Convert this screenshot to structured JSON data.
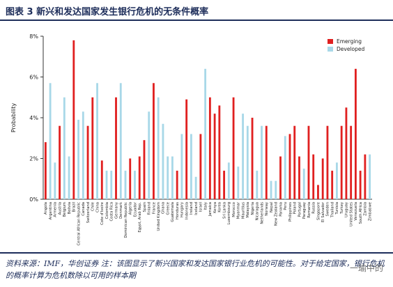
{
  "title": "图表 3 新兴和发达国家发生银行危机的无条件概率",
  "source_note": "资料来源：IMF，华创证券 注：该图显示了新兴国家和发达国家银行业危机的可能性。对于给定国家，银行危机的概率计算为危机数除以可用的样本期",
  "watermark": "一瑜中的",
  "chart_data": {
    "type": "bar",
    "ylabel": "Probability",
    "ylim": [
      0,
      8
    ],
    "yticks": [
      "0%",
      "2%",
      "4%",
      "6%",
      "8%"
    ],
    "grid": false,
    "legend_position": "top-right",
    "series": [
      {
        "name": "Emerging",
        "color": "#e02020"
      },
      {
        "name": "Developed",
        "color": "#a8d8e8"
      }
    ],
    "categories": [
      "Angola",
      "Argentina",
      "Armenia",
      "Austria",
      "Belgium",
      "Bolivia",
      "Brazil",
      "Central African Republic",
      "Canada",
      "Switzerland",
      "Chile",
      "China",
      "Cote d'Ivoire",
      "Colombia",
      "Costa Rica",
      "Germany",
      "Denmark",
      "Dominican Republic",
      "Algeria",
      "Ecuador",
      "Egypt, Arab Rep.",
      "Spain",
      "Finland",
      "France",
      "United Kingdom",
      "Ghana",
      "Greece",
      "Guatemala",
      "Honduras",
      "Hungary",
      "Indonesia",
      "Ireland",
      "Iceland",
      "Israel",
      "Italy",
      "Jamaica",
      "Kenya",
      "Korea",
      "Sri Lanka",
      "Luxembourg",
      "Morocco",
      "Myanmar",
      "Mauritius",
      "Malaysia",
      "Nigeria",
      "Nicaragua",
      "Netherlands",
      "Norway",
      "Nepal",
      "New Zealand",
      "Panama",
      "Peru",
      "Philippines",
      "Poland",
      "Portugal",
      "Paraguay",
      "Romania",
      "Russia",
      "Singapore",
      "El Salvador",
      "Sweden",
      "Thailand",
      "Tunisia",
      "Turkey",
      "Uruguay",
      "United States",
      "Venezuela",
      "South Africa",
      "Zambia",
      "Zimbabwe"
    ],
    "values": [
      {
        "v": 2.8,
        "s": "Emerging"
      },
      {
        "v": 5.7,
        "s": "Developed"
      },
      {
        "v": 1.8,
        "s": "Developed"
      },
      {
        "v": 3.6,
        "s": "Emerging"
      },
      {
        "v": 5.0,
        "s": "Developed"
      },
      {
        "v": 2.1,
        "s": "Developed"
      },
      {
        "v": 7.8,
        "s": "Emerging"
      },
      {
        "v": 3.9,
        "s": "Developed"
      },
      {
        "v": 4.3,
        "s": "Developed"
      },
      {
        "v": 3.6,
        "s": "Emerging"
      },
      {
        "v": 5.0,
        "s": "Emerging"
      },
      {
        "v": 5.7,
        "s": "Developed"
      },
      {
        "v": 1.9,
        "s": "Emerging"
      },
      {
        "v": 1.4,
        "s": "Developed"
      },
      {
        "v": 1.4,
        "s": "Developed"
      },
      {
        "v": 5.0,
        "s": "Emerging"
      },
      {
        "v": 5.7,
        "s": "Developed"
      },
      {
        "v": 1.4,
        "s": "Developed"
      },
      {
        "v": 2.0,
        "s": "Emerging"
      },
      {
        "v": 1.4,
        "s": "Developed"
      },
      {
        "v": 2.1,
        "s": "Emerging"
      },
      {
        "v": 2.9,
        "s": "Emerging"
      },
      {
        "v": 4.3,
        "s": "Developed"
      },
      {
        "v": 5.7,
        "s": "Emerging"
      },
      {
        "v": 5.0,
        "s": "Developed"
      },
      {
        "v": 3.7,
        "s": "Developed"
      },
      {
        "v": 2.1,
        "s": "Developed"
      },
      {
        "v": 2.1,
        "s": "Developed"
      },
      {
        "v": 1.4,
        "s": "Emerging"
      },
      {
        "v": 3.2,
        "s": "Developed"
      },
      {
        "v": 4.9,
        "s": "Emerging"
      },
      {
        "v": 3.2,
        "s": "Developed"
      },
      {
        "v": 1.1,
        "s": "Developed"
      },
      {
        "v": 3.2,
        "s": "Emerging"
      },
      {
        "v": 6.4,
        "s": "Developed"
      },
      {
        "v": 5.0,
        "s": "Emerging"
      },
      {
        "v": 4.2,
        "s": "Emerging"
      },
      {
        "v": 4.6,
        "s": "Emerging"
      },
      {
        "v": 1.4,
        "s": "Emerging"
      },
      {
        "v": 1.8,
        "s": "Developed"
      },
      {
        "v": 5.0,
        "s": "Emerging"
      },
      {
        "v": 1.6,
        "s": "Developed"
      },
      {
        "v": 4.2,
        "s": "Developed"
      },
      {
        "v": 3.6,
        "s": "Developed"
      },
      {
        "v": 4.0,
        "s": "Emerging"
      },
      {
        "v": 1.4,
        "s": "Developed"
      },
      {
        "v": 3.6,
        "s": "Developed"
      },
      {
        "v": 3.6,
        "s": "Emerging"
      },
      {
        "v": 0.9,
        "s": "Developed"
      },
      {
        "v": 0.9,
        "s": "Developed"
      },
      {
        "v": 2.1,
        "s": "Emerging"
      },
      {
        "v": 3.1,
        "s": "Developed"
      },
      {
        "v": 3.2,
        "s": "Emerging"
      },
      {
        "v": 3.6,
        "s": "Emerging"
      },
      {
        "v": 2.1,
        "s": "Emerging"
      },
      {
        "v": 1.5,
        "s": "Developed"
      },
      {
        "v": 3.6,
        "s": "Emerging"
      },
      {
        "v": 2.2,
        "s": "Emerging"
      },
      {
        "v": 0.7,
        "s": "Emerging"
      },
      {
        "v": 2.0,
        "s": "Emerging"
      },
      {
        "v": 3.6,
        "s": "Emerging"
      },
      {
        "v": 1.4,
        "s": "Emerging"
      },
      {
        "v": 1.8,
        "s": "Developed"
      },
      {
        "v": 3.6,
        "s": "Emerging"
      },
      {
        "v": 4.5,
        "s": "Emerging"
      },
      {
        "v": 3.6,
        "s": "Emerging"
      },
      {
        "v": 6.4,
        "s": "Emerging"
      },
      {
        "v": 1.4,
        "s": "Emerging"
      },
      {
        "v": 2.2,
        "s": "Emerging"
      },
      {
        "v": 2.2,
        "s": "Developed"
      }
    ]
  }
}
